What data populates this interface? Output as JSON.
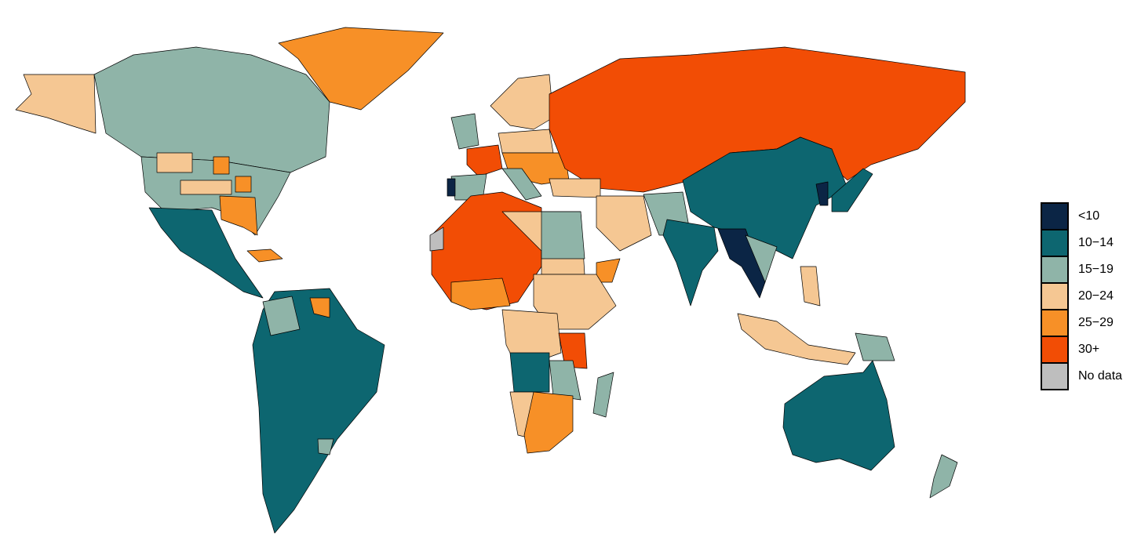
{
  "legend": {
    "items": [
      {
        "label": "<10",
        "color": "#0b2545"
      },
      {
        "label": "10−14",
        "color": "#0d6670"
      },
      {
        "label": "15−19",
        "color": "#8fb4a8"
      },
      {
        "label": "20−24",
        "color": "#f5c793"
      },
      {
        "label": "25−29",
        "color": "#f79027"
      },
      {
        "label": "30+",
        "color": "#f24d05"
      },
      {
        "label": "No data",
        "color": "#bebebe"
      }
    ]
  }
}
